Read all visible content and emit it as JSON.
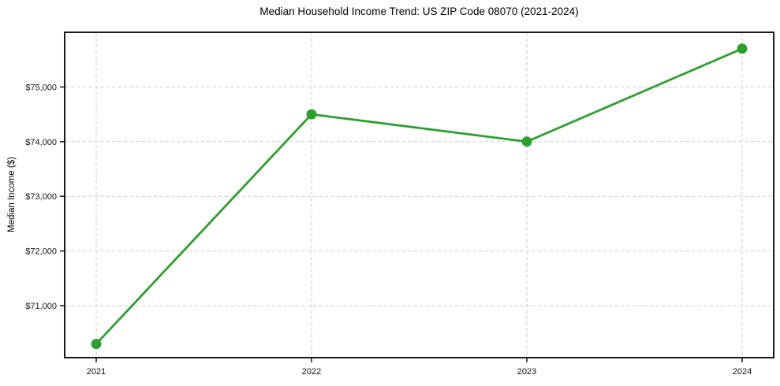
{
  "figure": {
    "title": "Median Household Income Trend: US ZIP Code 08070 (2021-2024)",
    "y_axis_title": "Median Income ($)"
  },
  "chart_data": {
    "type": "line",
    "title": "Median Household Income Trend: US ZIP Code 08070 (2021-2024)",
    "xlabel": "",
    "ylabel": "Median Income ($)",
    "categories": [
      "2021",
      "2022",
      "2023",
      "2024"
    ],
    "series": [
      {
        "values": [
          70300,
          74500,
          74000,
          75700
        ]
      }
    ],
    "yticks": [
      71000,
      72000,
      73000,
      74000,
      75000
    ],
    "ytick_labels": [
      "$71,000",
      "$72,000",
      "$73,000",
      "$74,000",
      "$75,000"
    ],
    "ylim": [
      70050,
      76000
    ],
    "grid": {
      "show": true,
      "style": "dashed",
      "axes": "both",
      "color": "#cdcdcd"
    },
    "legend": "none",
    "background": "#ffffff",
    "line_color": "#2ca02c",
    "marker": {
      "shape": "circle",
      "color": "#2ca02c",
      "radius": 6.5
    },
    "spine_color": "#000000",
    "tick_color": "#222222"
  }
}
